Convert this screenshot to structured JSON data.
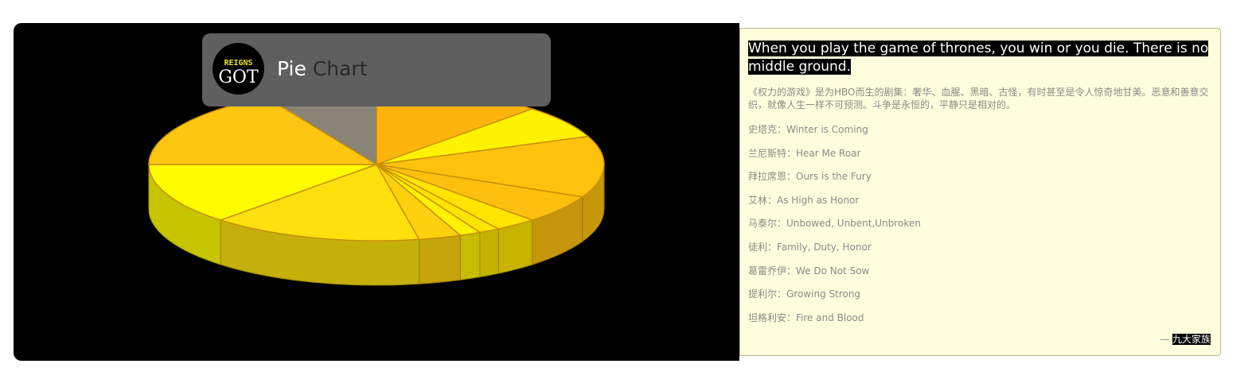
{
  "header": {
    "title_bold": "Pie",
    "title_light": "Chart",
    "logo_text_top": "REIGNS",
    "logo_text_bottom": "GOT"
  },
  "quote": {
    "english": "When you play the game of thrones, you win or you die. There is no middle ground.",
    "chinese": "《权力的游戏》是为HBO而生的剧集：奢华、血腥、黑暗、古怪，有时甚至是令人惊奇地甘美。恶意和善意交织，就像人生一样不可预测。斗争是永恒的，平静只是相对的。",
    "houses": [
      "史塔克：Winter is Coming",
      "兰尼斯特：Hear Me Roar",
      "拜拉席恩：Ours is the Fury",
      "艾林：As High as Honor",
      "马泰尔：Unbowed, Unbent,Unbroken",
      "徒利：Family, Duty, Honor",
      "葛雷乔伊：We Do Not Sow",
      "提利尔：Growing Strong",
      "坦格利安：Fire and Blood"
    ],
    "signature_dash": "—",
    "signature_name": "九大家族"
  },
  "chart_data": {
    "type": "pie",
    "values": [
      12,
      7,
      13,
      6,
      3,
      1.5,
      1.5,
      3,
      15,
      13,
      17,
      8
    ],
    "colors": [
      "#fdb50e",
      "#fff200",
      "#fec20c",
      "#fdc00f",
      "#ffe500",
      "#fde400",
      "#fff100",
      "#fdd10e",
      "#fde00e",
      "#fffb00",
      "#fdc611",
      "#8a8377"
    ]
  }
}
